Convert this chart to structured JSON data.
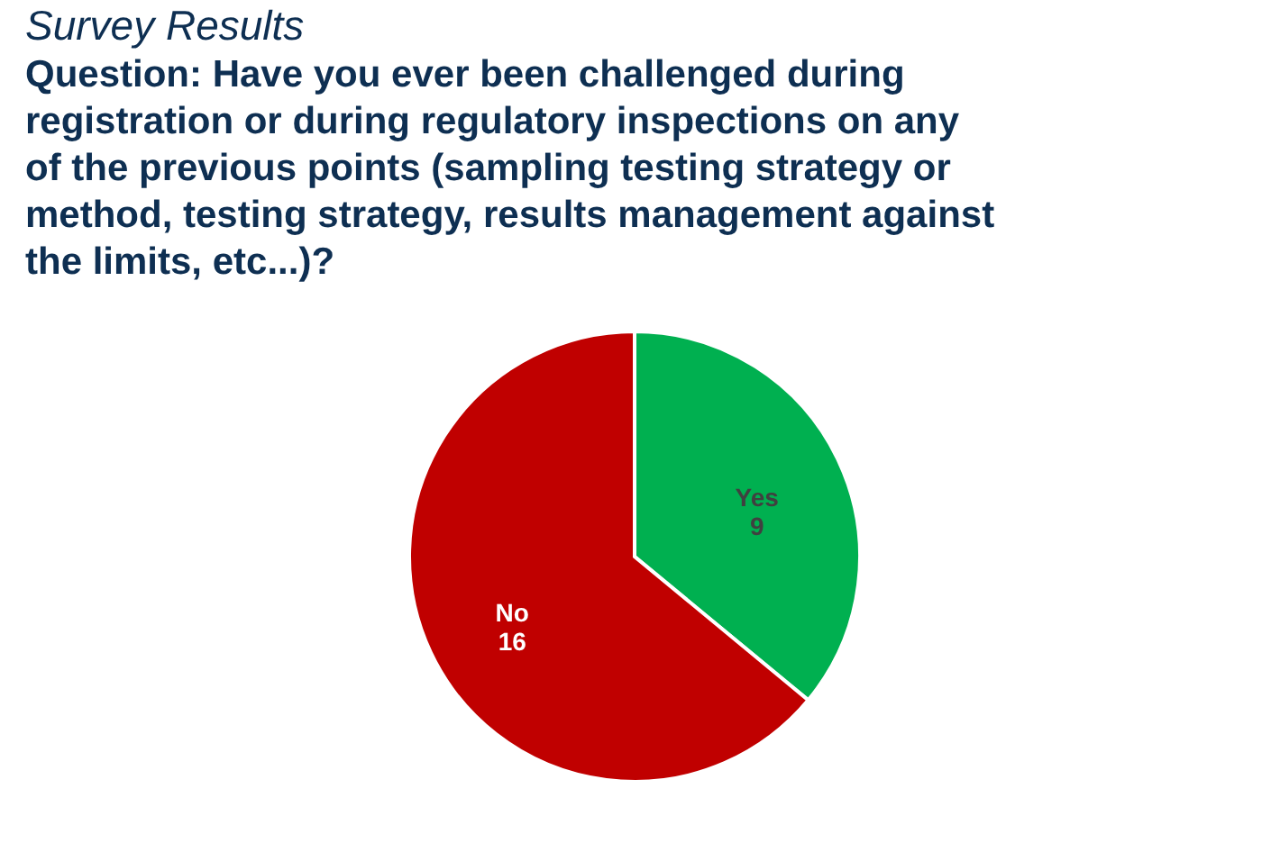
{
  "chart_data": {
    "type": "pie",
    "title": "Survey Results",
    "subtitle": "Question: Have you ever been challenged during registration or during regulatory inspections on any of the previous points (sampling testing strategy or method, testing strategy, results management against the limits, etc...)?",
    "categories": [
      "Yes",
      "No"
    ],
    "values": [
      9,
      16
    ],
    "colors": [
      "#00b050",
      "#c00000"
    ],
    "data_labels": true,
    "legend": false
  }
}
